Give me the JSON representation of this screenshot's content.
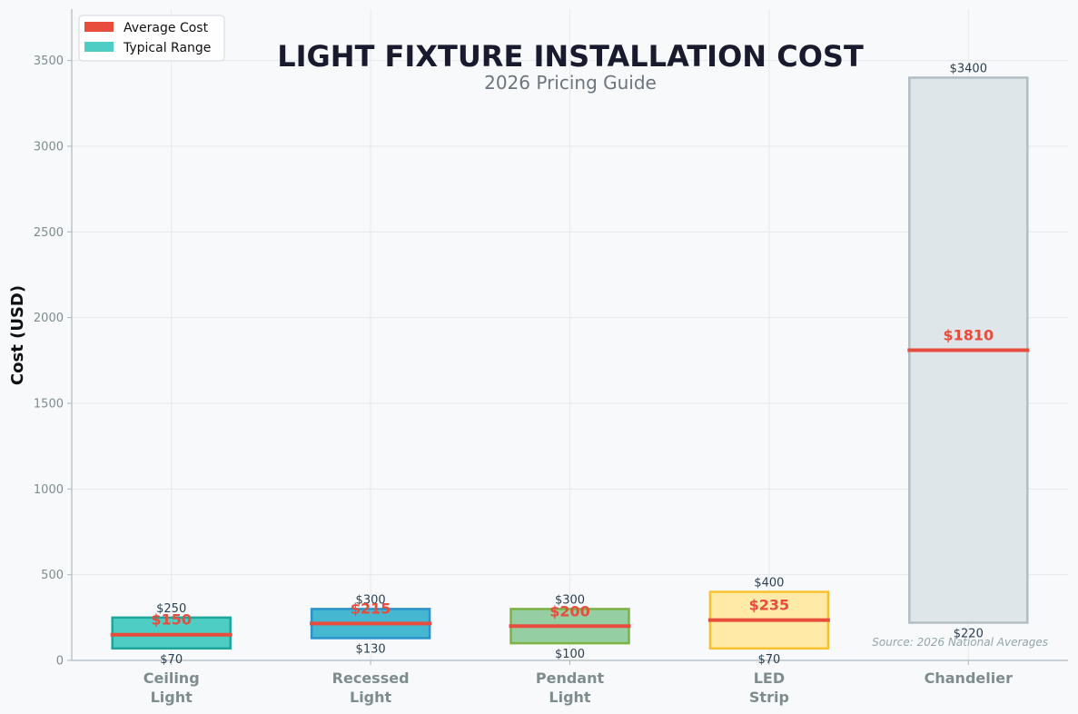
{
  "chart_data": {
    "type": "bar",
    "title": "LIGHT FIXTURE INSTALLATION COST",
    "subtitle": "2026 Pricing Guide",
    "ylabel": "Cost (USD)",
    "xlabel": "",
    "ylim": [
      0,
      3800
    ],
    "yticks": [
      0,
      500,
      1000,
      1500,
      2000,
      2500,
      3000,
      3500
    ],
    "grid": true,
    "legend_position": "top-left",
    "legend": [
      {
        "label": "Average Cost",
        "color": "#e74c3c"
      },
      {
        "label": "Typical Range",
        "color": "#4ecdc4"
      }
    ],
    "value_prefix": "$",
    "categories": [
      {
        "lines": [
          "Ceiling",
          "Light"
        ],
        "low": 70,
        "high": 250,
        "avg": 150,
        "fill": "#4ecdc4",
        "stroke": "#1fa69a"
      },
      {
        "lines": [
          "Recessed",
          "Light"
        ],
        "low": 130,
        "high": 300,
        "avg": 215,
        "fill": "#45b7d1",
        "stroke": "#2b93c9"
      },
      {
        "lines": [
          "Pendant",
          "Light"
        ],
        "low": 100,
        "high": 300,
        "avg": 200,
        "fill": "#96cea4",
        "stroke": "#7cb342"
      },
      {
        "lines": [
          "LED",
          "Strip"
        ],
        "low": 70,
        "high": 400,
        "avg": 235,
        "fill": "#ffeaa7",
        "stroke": "#f9c12e"
      },
      {
        "lines": [
          "Chandelier"
        ],
        "low": 220,
        "high": 3400,
        "avg": 1810,
        "fill": "#dfe6e9",
        "stroke": "#b2bec3"
      }
    ],
    "source": "Source: 2026 National Averages"
  }
}
